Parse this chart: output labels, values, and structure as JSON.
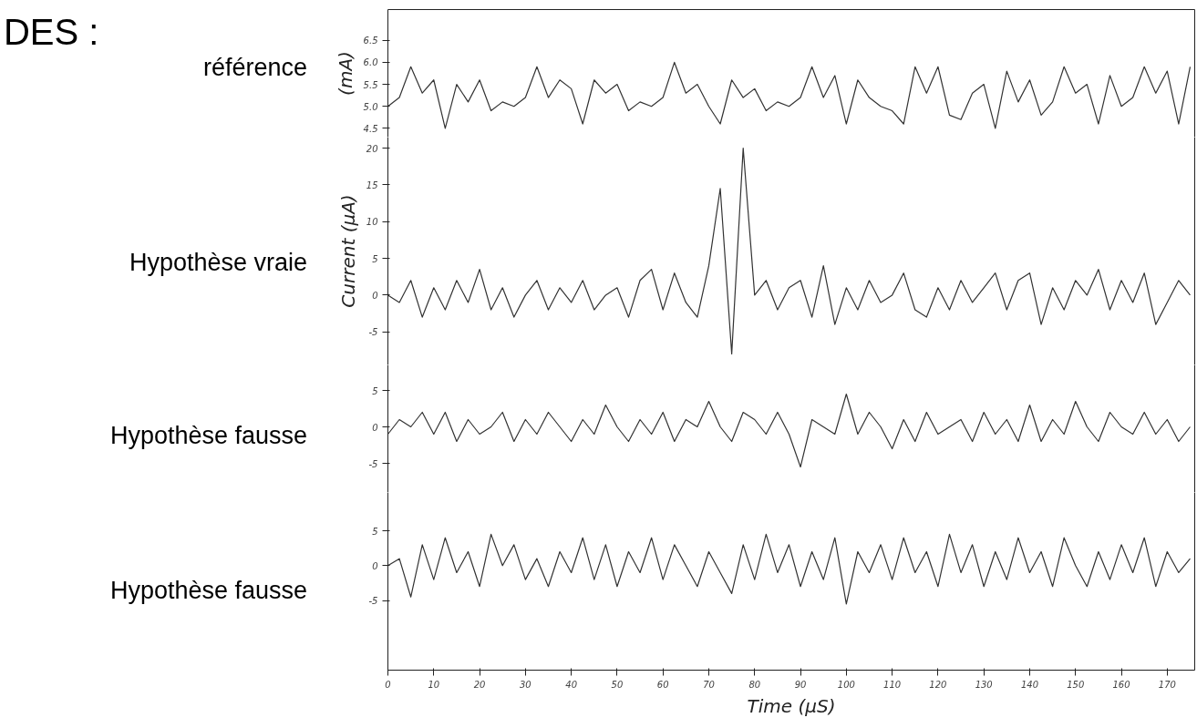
{
  "chart_data": [
    {
      "type": "line",
      "annotations": [
        "DES :",
        "référence"
      ],
      "ylabel": "(mA)",
      "tick_labels": "y",
      "x": [
        0,
        2.5,
        5,
        7.5,
        10,
        12.5,
        15,
        17.5,
        20,
        22.5,
        25,
        27.5,
        30,
        32.5,
        35,
        37.5,
        40,
        42.5,
        45,
        47.5,
        50,
        52.5,
        55,
        57.5,
        60,
        62.5,
        65,
        67.5,
        70,
        72.5,
        75,
        77.5,
        80,
        82.5,
        85,
        87.5,
        90,
        92.5,
        95,
        97.5,
        100,
        102.5,
        105,
        107.5,
        110,
        112.5,
        115,
        117.5,
        120,
        122.5,
        125,
        127.5,
        130,
        132.5,
        135,
        137.5,
        140,
        142.5,
        145,
        147.5,
        150,
        152.5,
        155,
        157.5,
        160,
        162.5,
        165,
        167.5,
        170,
        172.5,
        175
      ],
      "series": [
        {
          "color": "#333333",
          "values": [
            5.0,
            5.2,
            5.9,
            5.3,
            5.6,
            4.5,
            5.5,
            5.1,
            5.6,
            4.9,
            5.1,
            5.0,
            5.2,
            5.9,
            5.2,
            5.6,
            5.4,
            4.6,
            5.6,
            5.3,
            5.5,
            4.9,
            5.1,
            5.0,
            5.2,
            6.0,
            5.3,
            5.5,
            5.0,
            4.6,
            5.6,
            5.2,
            5.4,
            4.9,
            5.1,
            5.0,
            5.2,
            5.9,
            5.2,
            5.7,
            4.6,
            5.6,
            5.2,
            5.0,
            4.9,
            4.6,
            5.9,
            5.3,
            5.9,
            4.8,
            4.7,
            5.3,
            5.5,
            4.5,
            5.8,
            5.1,
            5.6,
            4.8,
            5.1,
            5.9,
            5.3,
            5.5,
            4.6,
            5.7,
            5.0,
            5.2,
            5.9,
            5.3,
            5.8,
            4.6,
            5.9
          ]
        }
      ],
      "xlim": [
        0,
        176
      ],
      "ylim": [
        4.3,
        7.2
      ],
      "yticks": [
        4.5,
        {
          "value": 5,
          "label": "5.0"
        },
        5.5,
        {
          "value": 6,
          "label": "6.0"
        },
        6.5
      ]
    },
    {
      "type": "line",
      "annotations": [
        "Hypothèse vraie"
      ],
      "ylabel": "Current (μA)",
      "tick_labels": "y",
      "x": [
        0,
        2.5,
        5,
        7.5,
        10,
        12.5,
        15,
        17.5,
        20,
        22.5,
        25,
        27.5,
        30,
        32.5,
        35,
        37.5,
        40,
        42.5,
        45,
        47.5,
        50,
        52.5,
        55,
        57.5,
        60,
        62.5,
        65,
        67.5,
        70,
        72.5,
        75,
        77.5,
        80,
        82.5,
        85,
        87.5,
        90,
        92.5,
        95,
        97.5,
        100,
        102.5,
        105,
        107.5,
        110,
        112.5,
        115,
        117.5,
        120,
        122.5,
        125,
        127.5,
        130,
        132.5,
        135,
        137.5,
        140,
        142.5,
        145,
        147.5,
        150,
        152.5,
        155,
        157.5,
        160,
        162.5,
        165,
        167.5,
        170,
        172.5,
        175
      ],
      "series": [
        {
          "color": "#333333",
          "values": [
            0,
            -1,
            2,
            -3,
            1,
            -2,
            2,
            -1,
            3.5,
            -2,
            1,
            -3,
            0,
            2,
            -2,
            1,
            -1,
            2,
            -2,
            0,
            1,
            -3,
            2,
            3.5,
            -2,
            3,
            -1,
            -3,
            4,
            14.5,
            -8,
            20,
            0,
            2,
            -2,
            1,
            2,
            -3,
            4,
            -4,
            1,
            -2,
            2,
            -1,
            0,
            3,
            -2,
            -3,
            1,
            -2,
            2,
            -1,
            1,
            3,
            -2,
            2,
            3,
            -4,
            1,
            -2,
            2,
            0,
            3.5,
            -2,
            2,
            -1,
            3,
            -4,
            -1,
            2,
            0
          ]
        }
      ],
      "xlim": [
        0,
        176
      ],
      "ylim": [
        -9.5,
        21.5
      ],
      "yticks": [
        -5,
        0,
        5,
        10,
        15,
        20
      ]
    },
    {
      "type": "line",
      "annotations": [
        "Hypothèse fausse"
      ],
      "tick_labels": "y",
      "x": [
        0,
        2.5,
        5,
        7.5,
        10,
        12.5,
        15,
        17.5,
        20,
        22.5,
        25,
        27.5,
        30,
        32.5,
        35,
        37.5,
        40,
        42.5,
        45,
        47.5,
        50,
        52.5,
        55,
        57.5,
        60,
        62.5,
        65,
        67.5,
        70,
        72.5,
        75,
        77.5,
        80,
        82.5,
        85,
        87.5,
        90,
        92.5,
        95,
        97.5,
        100,
        102.5,
        105,
        107.5,
        110,
        112.5,
        115,
        117.5,
        120,
        122.5,
        125,
        127.5,
        130,
        132.5,
        135,
        137.5,
        140,
        142.5,
        145,
        147.5,
        150,
        152.5,
        155,
        157.5,
        160,
        162.5,
        165,
        167.5,
        170,
        172.5,
        175
      ],
      "series": [
        {
          "color": "#333333",
          "values": [
            -1,
            1,
            0,
            2,
            -1,
            2,
            -2,
            1,
            -1,
            0,
            2,
            -2,
            1,
            -1,
            2,
            0,
            -2,
            1,
            -1,
            3,
            0,
            -2,
            1,
            -1,
            2,
            -2,
            1,
            0,
            3.5,
            0,
            -2,
            2,
            1,
            -1,
            2,
            -1,
            -5.5,
            1,
            0,
            -1,
            4.5,
            -1,
            2,
            0,
            -3,
            1,
            -2,
            2,
            -1,
            0,
            1,
            -2,
            2,
            -1,
            1,
            -2,
            3,
            -2,
            1,
            -1,
            3.5,
            0,
            -2,
            2,
            0,
            -1,
            2,
            -1,
            1,
            -2,
            0
          ]
        }
      ],
      "xlim": [
        0,
        176
      ],
      "ylim": [
        -9,
        8.5
      ],
      "yticks": [
        -5,
        0,
        5
      ]
    },
    {
      "type": "line",
      "annotations": [
        "Hypothèse fausse"
      ],
      "xlabel": "Time (μS)",
      "x": [
        0,
        2.5,
        5,
        7.5,
        10,
        12.5,
        15,
        17.5,
        20,
        22.5,
        25,
        27.5,
        30,
        32.5,
        35,
        37.5,
        40,
        42.5,
        45,
        47.5,
        50,
        52.5,
        55,
        57.5,
        60,
        62.5,
        65,
        67.5,
        70,
        72.5,
        75,
        77.5,
        80,
        82.5,
        85,
        87.5,
        90,
        92.5,
        95,
        97.5,
        100,
        102.5,
        105,
        107.5,
        110,
        112.5,
        115,
        117.5,
        120,
        122.5,
        125,
        127.5,
        130,
        132.5,
        135,
        137.5,
        140,
        142.5,
        145,
        147.5,
        150,
        152.5,
        155,
        157.5,
        160,
        162.5,
        165,
        167.5,
        170,
        172.5,
        175
      ],
      "series": [
        {
          "color": "#333333",
          "values": [
            0,
            1,
            -4.5,
            3,
            -2,
            4,
            -1,
            2,
            -3,
            4.5,
            0,
            3,
            -2,
            1,
            -3,
            2,
            -1,
            4,
            -2,
            3,
            -3,
            2,
            -1,
            4,
            -2,
            3,
            0,
            -3,
            2,
            -1,
            -4,
            3,
            -2,
            4.5,
            -1,
            3,
            -3,
            2,
            -2,
            4,
            -5.5,
            2,
            -1,
            3,
            -2,
            4,
            -1,
            2,
            -3,
            4.5,
            -1,
            3,
            -3,
            2,
            -2,
            4,
            -1,
            2,
            -3,
            4,
            0,
            -3,
            2,
            -2,
            3,
            -1,
            4,
            -3,
            2,
            -1,
            1
          ]
        }
      ],
      "xlim": [
        0,
        176
      ],
      "ylim": [
        -15,
        10.5
      ],
      "yticks": [
        -5,
        0,
        5
      ],
      "xticks": [
        0,
        10,
        20,
        30,
        40,
        50,
        60,
        70,
        80,
        90,
        100,
        110,
        120,
        130,
        140,
        150,
        160,
        170
      ]
    }
  ]
}
